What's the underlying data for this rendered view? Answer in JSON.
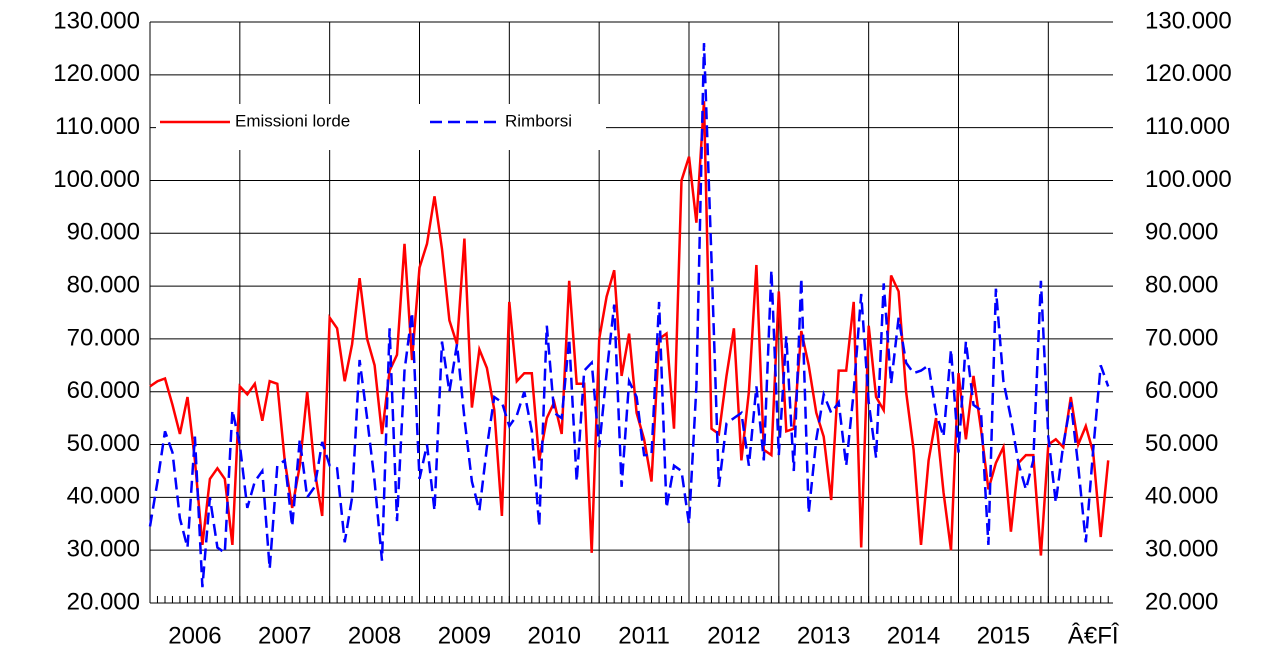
{
  "chart_data": {
    "type": "line",
    "x": [
      2006,
      2006.083,
      2006.167,
      2006.25,
      2006.333,
      2006.417,
      2006.5,
      2006.583,
      2006.667,
      2006.75,
      2006.833,
      2006.917,
      2007,
      2007.083,
      2007.167,
      2007.25,
      2007.333,
      2007.417,
      2007.5,
      2007.583,
      2007.667,
      2007.75,
      2007.833,
      2007.917,
      2008,
      2008.083,
      2008.167,
      2008.25,
      2008.333,
      2008.417,
      2008.5,
      2008.583,
      2008.667,
      2008.75,
      2008.833,
      2008.917,
      2009,
      2009.083,
      2009.167,
      2009.25,
      2009.333,
      2009.417,
      2009.5,
      2009.583,
      2009.667,
      2009.75,
      2009.833,
      2009.917,
      2010,
      2010.083,
      2010.167,
      2010.25,
      2010.333,
      2010.417,
      2010.5,
      2010.583,
      2010.667,
      2010.75,
      2010.833,
      2010.917,
      2011,
      2011.083,
      2011.167,
      2011.25,
      2011.333,
      2011.417,
      2011.5,
      2011.583,
      2011.667,
      2011.75,
      2011.833,
      2011.917,
      2012,
      2012.083,
      2012.167,
      2012.25,
      2012.333,
      2012.417,
      2012.5,
      2012.583,
      2012.667,
      2012.75,
      2012.833,
      2012.917,
      2013,
      2013.083,
      2013.167,
      2013.25,
      2013.333,
      2013.417,
      2013.5,
      2013.583,
      2013.667,
      2013.75,
      2013.833,
      2013.917,
      2014,
      2014.083,
      2014.167,
      2014.25,
      2014.333,
      2014.417,
      2014.5,
      2014.583,
      2014.667,
      2014.75,
      2014.833,
      2014.917,
      2015,
      2015.083,
      2015.167,
      2015.25,
      2015.333,
      2015.417,
      2015.5,
      2015.583,
      2015.667,
      2015.75,
      2015.833,
      2015.917,
      2016,
      2016.083,
      2016.167,
      2016.25,
      2016.333,
      2016.417,
      2016.5,
      2016.583,
      2016.667
    ],
    "series": [
      {
        "name": "Emissioni lorde",
        "color": "#ff0000",
        "dash": false,
        "values": [
          61000,
          62000,
          62500,
          57500,
          52000,
          59000,
          47000,
          31000,
          43500,
          45500,
          43500,
          31000,
          61000,
          59500,
          61500,
          54500,
          62000,
          61500,
          47000,
          38000,
          46000,
          60000,
          45000,
          36500,
          74000,
          72000,
          62000,
          69000,
          81500,
          70000,
          65000,
          52000,
          64000,
          67000,
          88000,
          66000,
          83500,
          88000,
          97000,
          87000,
          73500,
          69000,
          89000,
          57000,
          68000,
          64500,
          56500,
          36500,
          77000,
          62000,
          63500,
          63500,
          47000,
          55000,
          58000,
          52000,
          81000,
          61500,
          61500,
          29500,
          70000,
          78000,
          83000,
          63000,
          71000,
          56000,
          51000,
          43000,
          70000,
          71000,
          53000,
          100000,
          104500,
          92000,
          115000,
          53000,
          52000,
          63000,
          72000,
          47000,
          60000,
          84000,
          49000,
          48000,
          79000,
          52500,
          53000,
          71500,
          65000,
          56000,
          51500,
          39500,
          64000,
          64000,
          77000,
          30500,
          72500,
          59000,
          56500,
          82000,
          79000,
          60000,
          49000,
          31000,
          47000,
          55000,
          41000,
          30000,
          63500,
          51000,
          63000,
          53000,
          41500,
          46500,
          49500,
          33500,
          46500,
          48000,
          48000,
          29000,
          50000,
          51000,
          49500,
          59000,
          50000,
          53500,
          48500,
          32500,
          47000
        ]
      },
      {
        "name": "Rimborsi",
        "color": "#0000ff",
        "dash": true,
        "values": [
          34500,
          43000,
          52500,
          48500,
          36000,
          30500,
          51500,
          23000,
          40000,
          30500,
          29500,
          56500,
          50000,
          38000,
          43000,
          45000,
          26500,
          46000,
          47000,
          34500,
          51000,
          40000,
          42000,
          50500,
          46000,
          45500,
          31500,
          40000,
          66000,
          55000,
          43000,
          28000,
          72000,
          35500,
          64000,
          75000,
          43500,
          50000,
          37500,
          69500,
          60000,
          69000,
          55000,
          43000,
          37500,
          49500,
          59000,
          58000,
          53500,
          55500,
          60000,
          52500,
          34500,
          72500,
          56000,
          55000,
          70000,
          43000,
          64000,
          65500,
          49500,
          63500,
          76500,
          42000,
          62000,
          59000,
          48000,
          48000,
          77000,
          38000,
          46000,
          45000,
          35000,
          61000,
          126000,
          85000,
          42000,
          54000,
          55000,
          56000,
          46000,
          61000,
          47000,
          83000,
          48000,
          70500,
          45000,
          81500,
          37000,
          51000,
          59500,
          56000,
          58000,
          46000,
          60000,
          78500,
          58000,
          47500,
          80500,
          61500,
          74000,
          65500,
          63500,
          64000,
          65000,
          56000,
          51500,
          68000,
          48500,
          69500,
          57500,
          56500,
          31000,
          79500,
          62000,
          55000,
          46500,
          41500,
          47000,
          81000,
          51500,
          39000,
          50000,
          58000,
          46000,
          31500,
          49000,
          65000,
          61000
        ]
      }
    ],
    "xlim": [
      2006,
      2016.72
    ],
    "xticks": [
      2006,
      2007,
      2008,
      2009,
      2010,
      2011,
      2012,
      2013,
      2014,
      2015,
      2016
    ],
    "xtick_labels": [
      {
        "value": 2006.5,
        "label": "2006"
      },
      {
        "value": 2007.5,
        "label": "2007"
      },
      {
        "value": 2008.5,
        "label": "2008"
      },
      {
        "value": 2009.5,
        "label": "2009"
      },
      {
        "value": 2010.5,
        "label": "2010"
      },
      {
        "value": 2011.5,
        "label": "2011"
      },
      {
        "value": 2012.5,
        "label": "2012"
      },
      {
        "value": 2013.5,
        "label": "2013"
      },
      {
        "value": 2014.5,
        "label": "2014"
      },
      {
        "value": 2015.5,
        "label": "2015"
      },
      {
        "value": 2016.5,
        "label": "Â€FÎ"
      }
    ],
    "ylim": [
      20000,
      130000
    ],
    "yticks": [
      {
        "value": 20000,
        "label": "20.000"
      },
      {
        "value": 30000,
        "label": "30.000"
      },
      {
        "value": 40000,
        "label": "40.000"
      },
      {
        "value": 50000,
        "label": "50.000"
      },
      {
        "value": 60000,
        "label": "60.000"
      },
      {
        "value": 70000,
        "label": "70.000"
      },
      {
        "value": 80000,
        "label": "80.000"
      },
      {
        "value": 90000,
        "label": "90.000"
      },
      {
        "value": 100000,
        "label": "100.000"
      },
      {
        "value": 110000,
        "label": "110.000"
      },
      {
        "value": 120000,
        "label": "120.000"
      },
      {
        "value": 130000,
        "label": "130.000"
      }
    ],
    "grid": true,
    "legend": "top-left"
  }
}
